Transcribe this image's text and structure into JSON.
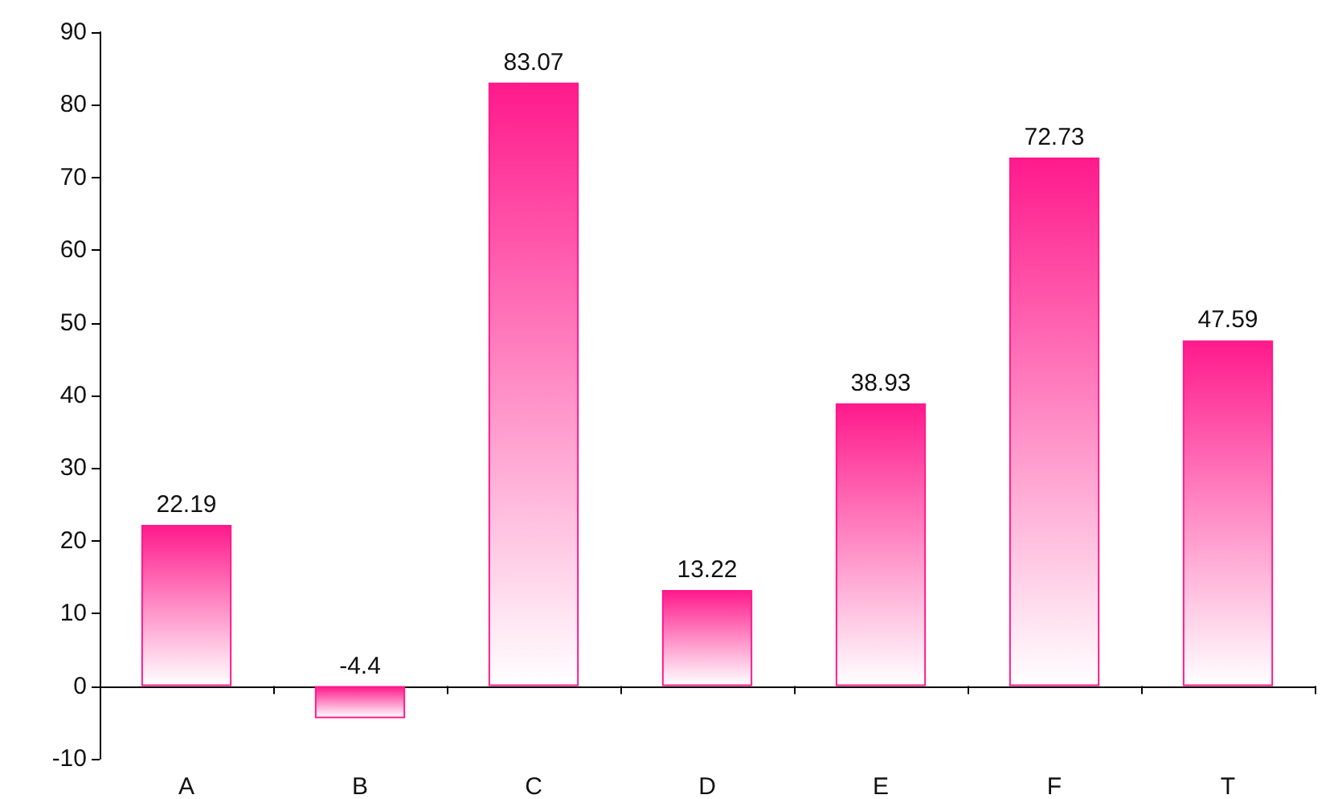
{
  "chart_data": {
    "type": "bar",
    "categories": [
      "A",
      "B",
      "C",
      "D",
      "E",
      "F",
      "T"
    ],
    "values": [
      22.19,
      -4.4,
      83.07,
      13.22,
      38.93,
      72.73,
      47.59
    ],
    "color": "#ff1a8c",
    "ylim": [
      -10,
      90
    ],
    "yticks": [
      -10,
      0,
      10,
      20,
      30,
      40,
      50,
      60,
      70,
      80,
      90
    ],
    "data_labels": true
  }
}
